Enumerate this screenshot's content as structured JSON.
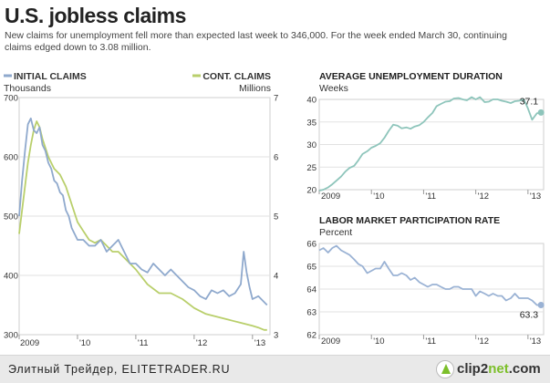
{
  "header": {
    "title": "U.S. jobless claims",
    "subtitle_line1": "New claims for unemployment fell more than expected last week to 346,000. For the week ended March 30, continuing",
    "subtitle_line2": "claims edged down to 3.08 million."
  },
  "colors": {
    "initial_claims": "#8fa9cd",
    "cont_claims": "#b9cf6b",
    "duration": "#8ec5bb",
    "participation": "#9ab2d4",
    "grid": "#cfcfcf",
    "text": "#333333"
  },
  "chart_data": [
    {
      "type": "line",
      "legend_left": "INITIAL CLAIMS",
      "unit_left": "Thousands",
      "legend_right": "CONT. CLAIMS",
      "unit_right": "Millions",
      "xlim": [
        2009.0,
        2013.3
      ],
      "ylim_left": [
        300,
        700
      ],
      "ylim_right": [
        3,
        7
      ],
      "x_tick_labels": [
        "2009",
        "'10",
        "'11",
        "'12",
        "'13"
      ],
      "x_tick_values": [
        2009,
        2010,
        2011,
        2012,
        2013
      ],
      "y_ticks_left": [
        300,
        400,
        500,
        600,
        700
      ],
      "y_ticks_right": [
        3,
        4,
        5,
        6,
        7
      ],
      "series": [
        {
          "name": "INITIAL CLAIMS",
          "axis": "left",
          "x": [
            2009.0,
            2009.05,
            2009.1,
            2009.15,
            2009.2,
            2009.25,
            2009.3,
            2009.35,
            2009.4,
            2009.45,
            2009.5,
            2009.55,
            2009.6,
            2009.65,
            2009.7,
            2009.75,
            2009.8,
            2009.85,
            2009.9,
            2009.95,
            2010.0,
            2010.1,
            2010.2,
            2010.3,
            2010.4,
            2010.5,
            2010.6,
            2010.7,
            2010.8,
            2010.9,
            2011.0,
            2011.1,
            2011.2,
            2011.3,
            2011.4,
            2011.5,
            2011.6,
            2011.7,
            2011.8,
            2011.9,
            2012.0,
            2012.1,
            2012.2,
            2012.3,
            2012.4,
            2012.5,
            2012.6,
            2012.7,
            2012.8,
            2012.85,
            2012.9,
            2012.95,
            2013.0,
            2013.1,
            2013.2,
            2013.25
          ],
          "y": [
            500,
            560,
            610,
            655,
            665,
            645,
            640,
            650,
            620,
            610,
            590,
            580,
            560,
            555,
            540,
            535,
            510,
            500,
            480,
            470,
            460,
            460,
            450,
            450,
            460,
            440,
            450,
            460,
            440,
            420,
            420,
            410,
            405,
            420,
            410,
            400,
            410,
            400,
            390,
            380,
            375,
            365,
            360,
            375,
            370,
            375,
            365,
            370,
            385,
            440,
            405,
            380,
            360,
            365,
            355,
            350
          ]
        },
        {
          "name": "CONT. CLAIMS",
          "axis": "right",
          "x": [
            2009.0,
            2009.05,
            2009.1,
            2009.15,
            2009.2,
            2009.25,
            2009.3,
            2009.35,
            2009.4,
            2009.45,
            2009.5,
            2009.6,
            2009.7,
            2009.8,
            2009.9,
            2010.0,
            2010.1,
            2010.2,
            2010.3,
            2010.4,
            2010.5,
            2010.6,
            2010.7,
            2010.8,
            2010.9,
            2011.0,
            2011.2,
            2011.4,
            2011.6,
            2011.8,
            2012.0,
            2012.2,
            2012.4,
            2012.6,
            2012.8,
            2013.0,
            2013.1,
            2013.2,
            2013.25
          ],
          "y": [
            4.7,
            5.1,
            5.5,
            5.9,
            6.2,
            6.45,
            6.6,
            6.5,
            6.3,
            6.15,
            6.0,
            5.8,
            5.7,
            5.5,
            5.2,
            4.9,
            4.75,
            4.6,
            4.55,
            4.6,
            4.5,
            4.4,
            4.4,
            4.3,
            4.2,
            4.1,
            3.85,
            3.7,
            3.7,
            3.6,
            3.45,
            3.35,
            3.3,
            3.25,
            3.2,
            3.15,
            3.12,
            3.08,
            3.08
          ]
        }
      ]
    },
    {
      "type": "line",
      "title": "AVERAGE UNEMPLOYMENT DURATION",
      "ylabel": "Weeks",
      "xlim": [
        2009.0,
        2013.3
      ],
      "ylim": [
        20,
        40
      ],
      "y_ticks": [
        20,
        30,
        40
      ],
      "y_tick_labels": [
        "20",
        "25",
        "30",
        "35",
        "40"
      ],
      "y_tick_values": [
        20,
        25,
        30,
        35,
        40
      ],
      "x_tick_labels": [
        "2009",
        "'10",
        "'11",
        "'12",
        "'13"
      ],
      "x_tick_values": [
        2009,
        2010,
        2011,
        2012,
        2013
      ],
      "last_value_label": "37.1",
      "series": [
        {
          "x": [
            2009.0,
            2009.08,
            2009.17,
            2009.25,
            2009.33,
            2009.42,
            2009.5,
            2009.58,
            2009.67,
            2009.75,
            2009.83,
            2009.92,
            2010.0,
            2010.08,
            2010.17,
            2010.25,
            2010.33,
            2010.42,
            2010.5,
            2010.58,
            2010.67,
            2010.75,
            2010.83,
            2010.92,
            2011.0,
            2011.08,
            2011.17,
            2011.25,
            2011.33,
            2011.42,
            2011.5,
            2011.58,
            2011.67,
            2011.75,
            2011.83,
            2011.92,
            2012.0,
            2012.08,
            2012.17,
            2012.25,
            2012.33,
            2012.42,
            2012.5,
            2012.58,
            2012.67,
            2012.75,
            2012.83,
            2012.92,
            2013.0,
            2013.08,
            2013.17,
            2013.25
          ],
          "y": [
            19.8,
            20.0,
            20.5,
            21.2,
            22.0,
            22.9,
            24.0,
            24.8,
            25.3,
            26.5,
            27.9,
            28.5,
            29.3,
            29.7,
            30.3,
            31.5,
            33.0,
            34.4,
            34.2,
            33.6,
            33.8,
            33.5,
            34.0,
            34.3,
            35.0,
            36.0,
            37.0,
            38.5,
            39.0,
            39.5,
            39.6,
            40.2,
            40.3,
            40.0,
            39.8,
            40.5,
            40.0,
            40.5,
            39.4,
            39.5,
            40.0,
            40.0,
            39.7,
            39.5,
            39.2,
            39.6,
            39.7,
            40.0,
            38.0,
            35.5,
            36.9,
            37.1
          ]
        }
      ]
    },
    {
      "type": "line",
      "title": "LABOR MARKET PARTICIPATION RATE",
      "ylabel": "Percent",
      "xlim": [
        2009.0,
        2013.3
      ],
      "ylim": [
        62,
        66
      ],
      "y_tick_values": [
        62,
        63,
        64,
        65,
        66
      ],
      "y_tick_labels": [
        "62",
        "63",
        "64",
        "65",
        "66"
      ],
      "x_tick_labels": [
        "2009",
        "'10",
        "'11",
        "'12",
        "'13"
      ],
      "x_tick_values": [
        2009,
        2010,
        2011,
        2012,
        2013
      ],
      "last_value_label": "63.3",
      "series": [
        {
          "x": [
            2009.0,
            2009.08,
            2009.17,
            2009.25,
            2009.33,
            2009.42,
            2009.5,
            2009.58,
            2009.67,
            2009.75,
            2009.83,
            2009.92,
            2010.0,
            2010.08,
            2010.17,
            2010.25,
            2010.33,
            2010.42,
            2010.5,
            2010.58,
            2010.67,
            2010.75,
            2010.83,
            2010.92,
            2011.0,
            2011.08,
            2011.17,
            2011.25,
            2011.33,
            2011.42,
            2011.5,
            2011.58,
            2011.67,
            2011.75,
            2011.83,
            2011.92,
            2012.0,
            2012.08,
            2012.17,
            2012.25,
            2012.33,
            2012.42,
            2012.5,
            2012.58,
            2012.67,
            2012.75,
            2012.83,
            2012.92,
            2013.0,
            2013.08,
            2013.17,
            2013.25
          ],
          "y": [
            65.7,
            65.8,
            65.6,
            65.8,
            65.9,
            65.7,
            65.6,
            65.5,
            65.3,
            65.1,
            65.0,
            64.7,
            64.8,
            64.9,
            64.9,
            65.2,
            64.9,
            64.6,
            64.6,
            64.7,
            64.6,
            64.4,
            64.5,
            64.3,
            64.2,
            64.1,
            64.2,
            64.2,
            64.1,
            64.0,
            64.0,
            64.1,
            64.1,
            64.0,
            64.0,
            64.0,
            63.7,
            63.9,
            63.8,
            63.7,
            63.8,
            63.7,
            63.7,
            63.5,
            63.6,
            63.8,
            63.6,
            63.6,
            63.6,
            63.5,
            63.3,
            63.3
          ]
        }
      ]
    }
  ],
  "footer": {
    "watermark_text": "Элитный Трейдер, ELITETRADER.RU",
    "logo_text_main": "clip2",
    "logo_text_accent": "net",
    "logo_text_tail": ".com"
  }
}
